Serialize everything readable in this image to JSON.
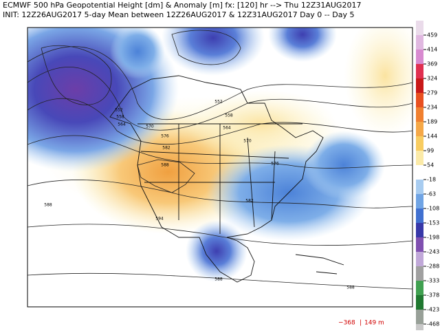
{
  "header": {
    "line1": "ECMWF 500 hPa Geopotential Height [dm] & Anomaly [m] fx: [120] hr --> Thu 12Z31AUG2017",
    "line2": "INIT: 12Z26AUG2017 5-day Mean between 12Z26AUG2017 & 12Z31AUG2017   Day 0 -- Day 5"
  },
  "colorbar": {
    "ticks": [
      459,
      414,
      369,
      324,
      279,
      234,
      189,
      144,
      99,
      54,
      -18,
      -63,
      -108,
      -153,
      -198,
      -243,
      -288,
      -333,
      -378,
      -423,
      -468
    ]
  },
  "footer": {
    "min": "−368",
    "separator": "|",
    "max": "149 m"
  },
  "map": {
    "contour_labels": [
      "552",
      "558",
      "564",
      "570",
      "576",
      "582",
      "588",
      "594",
      "588",
      "552",
      "558",
      "564",
      "570",
      "576",
      "582",
      "588",
      "588"
    ]
  }
}
